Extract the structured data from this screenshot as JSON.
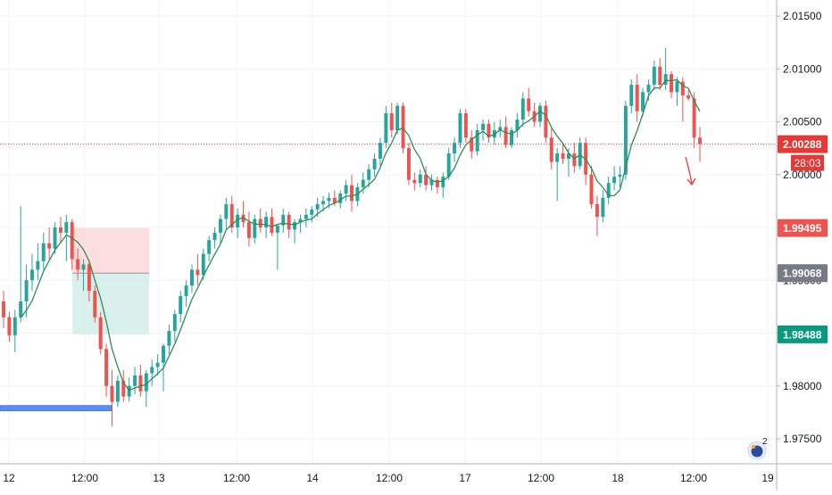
{
  "chart_data": {
    "type": "candlestick",
    "xlabels": [
      "12",
      "12:00",
      "13",
      "12:00",
      "14",
      "12:00",
      "17",
      "12:00",
      "18",
      "12:00",
      "19"
    ],
    "ylim": [
      1.9725,
      2.0175
    ],
    "yticks": [
      "2.01500",
      "2.01000",
      "2.00500",
      "2.00000",
      "1.99500",
      "1.99000",
      "1.98500",
      "1.98000",
      "1.97500"
    ],
    "grid": true,
    "colors": {
      "up": "#26a69a",
      "down": "#ef5350",
      "ma": "#2e8b57",
      "price_line": "#e53935",
      "sl_label": "#ef5350",
      "entry_label": "#787b86",
      "tp_label": "#089981",
      "stop_zone": "#fdd8d8",
      "target_zone": "#d2ede9",
      "support_line": "#5b8df6"
    },
    "current_price": "2.00288",
    "countdown": "28:03",
    "trade": {
      "stop_loss": "1.99495",
      "entry": "1.99068",
      "take_profit": "1.98488"
    },
    "support_level": 1.9779,
    "badge": "2",
    "candles": [
      [
        1.988,
        1.989,
        1.9855,
        1.9865
      ],
      [
        1.9865,
        1.987,
        1.9842,
        1.9848
      ],
      [
        1.9848,
        1.9872,
        1.9832,
        1.9865
      ],
      [
        1.9865,
        1.997,
        1.986,
        1.988
      ],
      [
        1.988,
        1.9915,
        1.9865,
        1.99
      ],
      [
        1.99,
        1.9925,
        1.989,
        1.991
      ],
      [
        1.991,
        1.9935,
        1.99,
        1.9918
      ],
      [
        1.9918,
        1.9945,
        1.991,
        1.9935
      ],
      [
        1.9935,
        1.995,
        1.992,
        1.993
      ],
      [
        1.993,
        1.9955,
        1.9925,
        1.995
      ],
      [
        1.995,
        1.996,
        1.9935,
        1.9945
      ],
      [
        1.9945,
        1.9962,
        1.9918,
        1.9955
      ],
      [
        1.9955,
        1.9958,
        1.991,
        1.992
      ],
      [
        1.992,
        1.993,
        1.99,
        1.991
      ],
      [
        1.991,
        1.992,
        1.989,
        1.9915
      ],
      [
        1.9915,
        1.9918,
        1.988,
        1.989
      ],
      [
        1.989,
        1.9895,
        1.986,
        1.9865
      ],
      [
        1.9865,
        1.987,
        1.983,
        1.9835
      ],
      [
        1.9835,
        1.984,
        1.979,
        1.98
      ],
      [
        1.98,
        1.9815,
        1.9762,
        1.9785
      ],
      [
        1.9785,
        1.981,
        1.978,
        1.9805
      ],
      [
        1.9805,
        1.9815,
        1.9785,
        1.979
      ],
      [
        1.979,
        1.9808,
        1.9785,
        1.98
      ],
      [
        1.98,
        1.9818,
        1.9792,
        1.981
      ],
      [
        1.981,
        1.982,
        1.979,
        1.9795
      ],
      [
        1.9795,
        1.9815,
        1.978,
        1.9812
      ],
      [
        1.9812,
        1.9825,
        1.98,
        1.9818
      ],
      [
        1.9818,
        1.983,
        1.981,
        1.9822
      ],
      [
        1.9822,
        1.984,
        1.9795,
        1.9838
      ],
      [
        1.9838,
        1.9858,
        1.983,
        1.9852
      ],
      [
        1.9852,
        1.9872,
        1.9842,
        1.9868
      ],
      [
        1.9868,
        1.989,
        1.986,
        1.9885
      ],
      [
        1.9885,
        1.99,
        1.9875,
        1.9895
      ],
      [
        1.9895,
        1.9915,
        1.9888,
        1.991
      ],
      [
        1.991,
        1.9925,
        1.9895,
        1.9905
      ],
      [
        1.9905,
        1.993,
        1.99,
        1.9925
      ],
      [
        1.9925,
        1.9942,
        1.9918,
        1.9938
      ],
      [
        1.9938,
        1.995,
        1.993,
        1.9945
      ],
      [
        1.9945,
        1.9962,
        1.9935,
        1.9958
      ],
      [
        1.9958,
        1.9978,
        1.9948,
        1.9972
      ],
      [
        1.9972,
        1.998,
        1.9945,
        1.995
      ],
      [
        1.995,
        1.9968,
        1.994,
        1.9962
      ],
      [
        1.9962,
        1.9975,
        1.995,
        1.9955
      ],
      [
        1.9955,
        1.9965,
        1.9932,
        1.994
      ],
      [
        1.994,
        1.9962,
        1.9935,
        1.9958
      ],
      [
        1.9958,
        1.9968,
        1.9945,
        1.995
      ],
      [
        1.995,
        1.9965,
        1.994,
        1.996
      ],
      [
        1.996,
        1.9968,
        1.9942,
        1.9945
      ],
      [
        1.9945,
        1.995,
        1.991,
        1.9952
      ],
      [
        1.9952,
        1.9968,
        1.9945,
        1.9962
      ],
      [
        1.9962,
        1.9965,
        1.994,
        1.9948
      ],
      [
        1.9948,
        1.9958,
        1.9935,
        1.9955
      ],
      [
        1.9955,
        1.9962,
        1.9945,
        1.9958
      ],
      [
        1.9958,
        1.9968,
        1.995,
        1.9962
      ],
      [
        1.9962,
        1.997,
        1.9955,
        1.9967
      ],
      [
        1.9967,
        1.9978,
        1.996,
        1.9972
      ],
      [
        1.9972,
        1.998,
        1.9965,
        1.9975
      ],
      [
        1.9975,
        1.9983,
        1.9968,
        1.9978
      ],
      [
        1.9978,
        1.9985,
        1.997,
        1.9973
      ],
      [
        1.9973,
        1.9985,
        1.9968,
        1.9982
      ],
      [
        1.9982,
        1.9995,
        1.9975,
        1.999
      ],
      [
        1.999,
        2.0,
        1.9965,
        1.9975
      ],
      [
        1.9975,
        1.9992,
        1.997,
        1.9988
      ],
      [
        1.9988,
        2.0002,
        1.9982,
        1.9995
      ],
      [
        1.9995,
        2.001,
        1.9988,
        2.0005
      ],
      [
        2.0005,
        2.002,
        1.9998,
        2.0015
      ],
      [
        2.0015,
        2.0035,
        2.0008,
        2.003
      ],
      [
        2.003,
        2.0065,
        2.0025,
        2.0058
      ],
      [
        2.0058,
        2.0068,
        2.0035,
        2.0042
      ],
      [
        2.0042,
        2.0068,
        2.0038,
        2.0065
      ],
      [
        2.0065,
        2.0068,
        2.002,
        2.0025
      ],
      [
        2.0025,
        2.003,
        1.999,
        1.9995
      ],
      [
        1.9995,
        2.0002,
        1.9985,
        1.9992
      ],
      [
        1.9992,
        2.0005,
        1.9988,
        2.0
      ],
      [
        2.0,
        2.0008,
        1.9985,
        1.999
      ],
      [
        1.999,
        2.0,
        1.9985,
        1.9995
      ],
      [
        1.9995,
        1.9998,
        1.9982,
        1.9988
      ],
      [
        1.9988,
        2.0002,
        1.9978,
        1.9998
      ],
      [
        1.9998,
        2.0025,
        1.9995,
        2.002
      ],
      [
        2.002,
        2.0035,
        2.0012,
        2.003
      ],
      [
        2.003,
        2.0062,
        2.0025,
        2.0058
      ],
      [
        2.0058,
        2.0062,
        2.003,
        2.0035
      ],
      [
        2.0035,
        2.0042,
        2.0015,
        2.0022
      ],
      [
        2.0022,
        2.0048,
        2.0018,
        2.0042
      ],
      [
        2.0042,
        2.0052,
        2.0032,
        2.0048
      ],
      [
        2.0048,
        2.0052,
        2.003,
        2.0035
      ],
      [
        2.0035,
        2.005,
        2.0028,
        2.0042
      ],
      [
        2.0042,
        2.0052,
        2.0035,
        2.0045
      ],
      [
        2.0045,
        2.0055,
        2.0025,
        2.0028
      ],
      [
        2.0028,
        2.0045,
        2.0025,
        2.0042
      ],
      [
        2.0042,
        2.0058,
        2.0035,
        2.0052
      ],
      [
        2.0052,
        2.0078,
        2.0045,
        2.0072
      ],
      [
        2.0072,
        2.0082,
        2.0055,
        2.006
      ],
      [
        2.006,
        2.0068,
        2.0045,
        2.005
      ],
      [
        2.005,
        2.0068,
        2.0045,
        2.0065
      ],
      [
        2.0065,
        2.007,
        2.003,
        2.0035
      ],
      [
        2.0035,
        2.0045,
        2.0005,
        2.0012
      ],
      [
        2.0012,
        2.0025,
        1.9975,
        2.002
      ],
      [
        2.002,
        2.003,
        2.001,
        2.0015
      ],
      [
        2.0015,
        2.0025,
        1.9998,
        2.002
      ],
      [
        2.002,
        2.003,
        2.0002,
        2.0008
      ],
      [
        2.0008,
        2.0035,
        2.0005,
        2.003
      ],
      [
        2.003,
        2.0035,
        1.999,
        2.0
      ],
      [
        2.0,
        2.0008,
        1.9968,
        1.9972
      ],
      [
        1.9972,
        1.998,
        1.9942,
        1.996
      ],
      [
        1.996,
        1.9985,
        1.9955,
        1.9978
      ],
      [
        1.9978,
        1.9998,
        1.9972,
        1.9992
      ],
      [
        1.9992,
        2.0008,
        1.9985,
        1.9998
      ],
      [
        1.9998,
        2.0008,
        1.9988,
        2.0
      ],
      [
        2.0,
        2.007,
        1.9995,
        2.0065
      ],
      [
        2.0065,
        2.009,
        2.0058,
        2.0085
      ],
      [
        2.0085,
        2.0095,
        2.005,
        2.006
      ],
      [
        2.006,
        2.0082,
        2.0055,
        2.0078
      ],
      [
        2.0078,
        2.009,
        2.007,
        2.0085
      ],
      [
        2.0085,
        2.0108,
        2.008,
        2.0102
      ],
      [
        2.0102,
        2.011,
        2.008,
        2.0085
      ],
      [
        2.0085,
        2.012,
        2.008,
        2.0095
      ],
      [
        2.0095,
        2.0098,
        2.0072,
        2.0078
      ],
      [
        2.0078,
        2.0092,
        2.0065,
        2.0088
      ],
      [
        2.0088,
        2.0092,
        2.005,
        2.0075
      ],
      [
        2.0075,
        2.008,
        2.007,
        2.0072
      ],
      [
        2.0072,
        2.0078,
        2.0025,
        2.0035
      ],
      [
        2.0035,
        2.0045,
        2.0012,
        2.0029
      ]
    ]
  }
}
